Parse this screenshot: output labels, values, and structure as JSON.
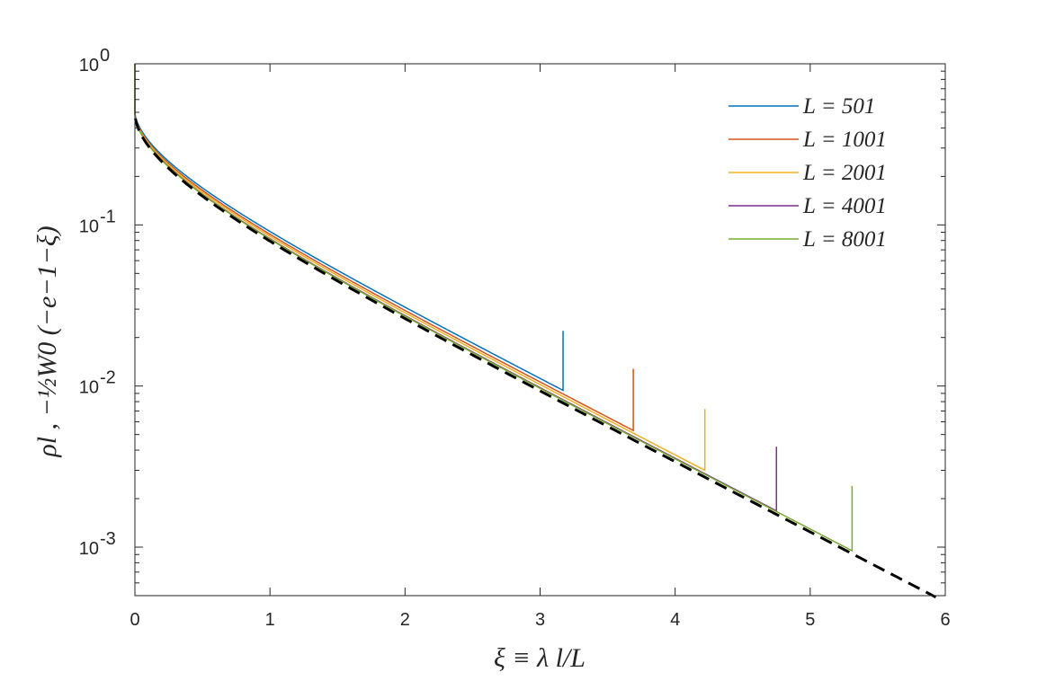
{
  "chart_data": {
    "type": "line",
    "xlabel": "ξ ≡ λ l/L",
    "ylabel": "ρl ,  −½W0 (−e−1−ξ)",
    "xlim": [
      0,
      6
    ],
    "ylim": [
      0.0005,
      1
    ],
    "yscale": "log",
    "x_ticks": [
      "0",
      "1",
      "2",
      "3",
      "4",
      "5",
      "6"
    ],
    "y_ticks": [
      {
        "base": "10",
        "exp": "0"
      },
      {
        "base": "10",
        "exp": "-1"
      },
      {
        "base": "10",
        "exp": "-2"
      },
      {
        "base": "10",
        "exp": "-3"
      }
    ],
    "grid": false,
    "legend_position": "top-right",
    "series": [
      {
        "name": "L = 501",
        "color": "#0072BD",
        "x_end": 3.17,
        "y_end": 0.0094,
        "spike_top": 0.022
      },
      {
        "name": "L = 1001",
        "color": "#D95319",
        "x_end": 3.69,
        "y_end": 0.0053,
        "spike_top": 0.0128
      },
      {
        "name": "L = 2001",
        "color": "#EDB120",
        "x_end": 4.22,
        "y_end": 0.003,
        "spike_top": 0.0072
      },
      {
        "name": "L = 4001",
        "color": "#7E2F8E",
        "x_end": 4.75,
        "y_end": 0.00168,
        "spike_top": 0.0042
      },
      {
        "name": "L = 8001",
        "color": "#77AC30",
        "x_end": 5.31,
        "y_end": 0.00095,
        "spike_top": 0.0024
      }
    ],
    "reference_curve": {
      "name": "−½ W0(−e^(−1−ξ))",
      "style": "dashed",
      "color": "#000000",
      "x_range": [
        0,
        5.93
      ]
    }
  }
}
